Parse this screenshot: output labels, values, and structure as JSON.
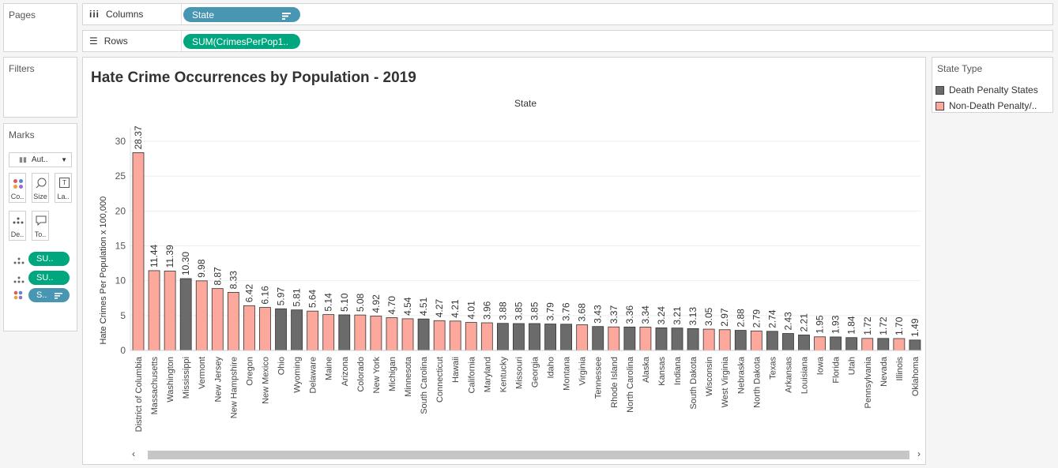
{
  "shelves": {
    "pages_label": "Pages",
    "columns_label": "Columns",
    "columns_pill": "State",
    "rows_label": "Rows",
    "rows_pill": "SUM(CrimesPerPop1.."
  },
  "filters": {
    "title": "Filters"
  },
  "marks": {
    "title": "Marks",
    "type_label": "Aut..",
    "cards": [
      "Co..",
      "Size",
      "La..",
      "De..",
      "To.."
    ],
    "pills": [
      {
        "label": "SU..",
        "color": "#00a67e"
      },
      {
        "label": "SU..",
        "color": "#00a67e"
      },
      {
        "label": "S..",
        "color": "#4996b2"
      }
    ]
  },
  "legend": {
    "title": "State Type",
    "items": [
      {
        "label": "Death Penalty States",
        "color": "#6b6b6b"
      },
      {
        "label": "Non-Death Penalty/..",
        "color": "#fca89c"
      }
    ]
  },
  "chart_data": {
    "type": "bar",
    "title": "Hate Crime Occurrences by Population - 2019",
    "column_header": "State",
    "ylabel": "Hate Crimes Per Population x 100,000",
    "ylim": [
      0,
      32
    ],
    "yticks": [
      0,
      5,
      10,
      15,
      20,
      25,
      30
    ],
    "grid": true,
    "categories": [
      "District of Columbia",
      "Massachusetts",
      "Washington",
      "Mississippi",
      "Vermont",
      "New Jersey",
      "New Hampshire",
      "Oregon",
      "New Mexico",
      "Ohio",
      "Wyoming",
      "Delaware",
      "Maine",
      "Arizona",
      "Colorado",
      "New York",
      "Michigan",
      "Minnesota",
      "South Carolina",
      "Connecticut",
      "Hawaii",
      "California",
      "Maryland",
      "Kentucky",
      "Missouri",
      "Georgia",
      "Idaho",
      "Montana",
      "Virginia",
      "Tennessee",
      "Rhode Island",
      "North Carolina",
      "Alaska",
      "Kansas",
      "Indiana",
      "South Dakota",
      "Wisconsin",
      "West Virginia",
      "Nebraska",
      "North Dakota",
      "Texas",
      "Arkansas",
      "Louisiana",
      "Iowa",
      "Florida",
      "Utah",
      "Pennsylvania",
      "Nevada",
      "Illinois",
      "Oklahoma"
    ],
    "values": [
      28.37,
      11.44,
      11.39,
      10.3,
      9.98,
      8.87,
      8.33,
      6.42,
      6.16,
      5.97,
      5.81,
      5.64,
      5.14,
      5.1,
      5.08,
      4.92,
      4.7,
      4.54,
      4.51,
      4.27,
      4.21,
      4.01,
      3.96,
      3.88,
      3.85,
      3.85,
      3.79,
      3.76,
      3.68,
      3.43,
      3.37,
      3.36,
      3.34,
      3.24,
      3.21,
      3.13,
      3.05,
      2.97,
      2.88,
      2.79,
      2.74,
      2.43,
      2.21,
      1.95,
      1.93,
      1.84,
      1.72,
      1.72,
      1.7,
      1.49
    ],
    "labels": [
      "28.37",
      "11.44",
      "11.39",
      "10.30",
      "9.98",
      "8.87",
      "8.33",
      "6.42",
      "6.16",
      "5.97",
      "5.81",
      "5.64",
      "5.14",
      "5.10",
      "5.08",
      "4.92",
      "4.70",
      "4.54",
      "4.51",
      "4.27",
      "4.21",
      "4.01",
      "3.96",
      "3.88",
      "3.85",
      "3.85",
      "3.79",
      "3.76",
      "3.68",
      "3.43",
      "3.37",
      "3.36",
      "3.34",
      "3.24",
      "3.21",
      "3.13",
      "3.05",
      "2.97",
      "2.88",
      "2.79",
      "2.74",
      "2.43",
      "2.21",
      "1.95",
      "1.93",
      "1.84",
      "1.72",
      "1.72",
      "1.70",
      "1.49"
    ],
    "state_type": [
      "N",
      "N",
      "N",
      "D",
      "N",
      "N",
      "N",
      "N",
      "N",
      "D",
      "D",
      "N",
      "N",
      "D",
      "N",
      "N",
      "N",
      "N",
      "D",
      "N",
      "N",
      "N",
      "N",
      "D",
      "D",
      "D",
      "D",
      "D",
      "N",
      "D",
      "N",
      "D",
      "N",
      "D",
      "D",
      "D",
      "N",
      "N",
      "D",
      "N",
      "D",
      "D",
      "D",
      "N",
      "D",
      "D",
      "N",
      "D",
      "N",
      "D"
    ]
  }
}
